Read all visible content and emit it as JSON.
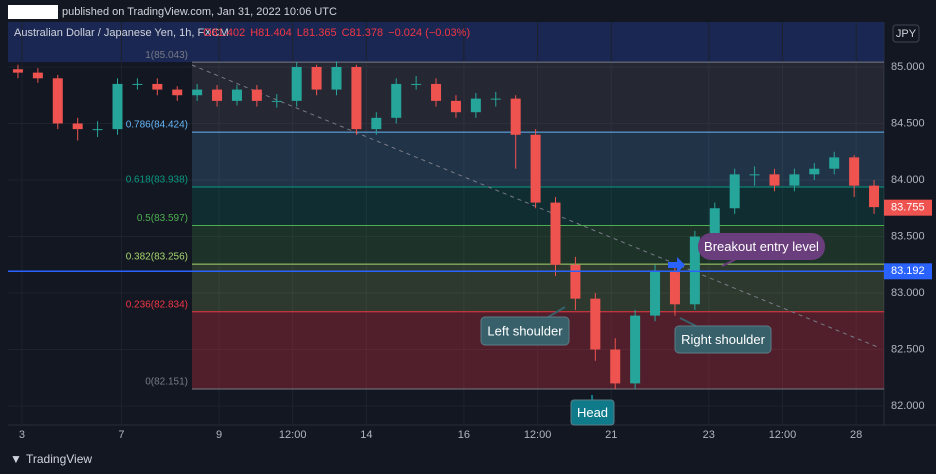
{
  "header": "published on TradingView.com, Jan 31, 2022 10:06 UTC",
  "brand": "TradingView",
  "chart_data": {
    "type": "candlestick",
    "symbol": "Australian Dollar / Japanese Yen, 1h, FXCM",
    "ohlc_legend": [
      "O81.402",
      "H81.404",
      "L81.365",
      "C81.378",
      "−0.024 (−0.03%)"
    ],
    "currency": "JPY",
    "up_color": "#26a69a",
    "down_color": "#ef5350",
    "open": [
      84.98,
      84.95,
      84.9,
      84.5,
      84.45,
      84.45,
      84.85,
      84.85,
      84.8,
      84.75,
      84.8,
      84.7,
      84.8,
      84.7,
      84.7,
      85.0,
      84.8,
      85.0,
      84.45,
      84.55,
      84.85,
      84.85,
      84.7,
      84.6,
      84.72,
      84.72,
      84.4,
      83.8,
      83.25,
      82.95,
      82.5,
      82.2,
      82.8,
      83.2,
      82.9,
      83.5,
      83.75,
      84.05,
      84.05,
      83.95,
      84.05,
      84.1,
      84.2,
      83.95
    ],
    "high": [
      85.02,
      84.99,
      84.93,
      84.55,
      84.52,
      84.9,
      84.9,
      84.9,
      84.83,
      84.85,
      84.84,
      84.84,
      84.84,
      84.76,
      85.04,
      85.02,
      85.05,
      85.02,
      84.6,
      84.9,
      84.92,
      84.9,
      84.75,
      84.77,
      84.78,
      84.75,
      84.45,
      83.85,
      83.32,
      83.0,
      82.6,
      82.85,
      83.25,
      83.25,
      83.55,
      83.8,
      84.1,
      84.12,
      84.1,
      84.1,
      84.15,
      84.25,
      84.22,
      84.0
    ],
    "low": [
      84.9,
      84.86,
      84.45,
      84.35,
      84.38,
      84.4,
      84.8,
      84.75,
      84.7,
      84.7,
      84.65,
      84.66,
      84.65,
      84.64,
      84.65,
      84.75,
      84.75,
      84.4,
      84.4,
      84.5,
      84.8,
      84.65,
      84.55,
      84.55,
      84.65,
      84.1,
      83.75,
      83.15,
      82.85,
      82.4,
      82.15,
      82.15,
      82.75,
      82.8,
      82.85,
      83.45,
      83.7,
      83.95,
      83.9,
      83.9,
      84.0,
      84.05,
      83.85,
      83.7
    ],
    "close": [
      84.95,
      84.9,
      84.5,
      84.45,
      84.45,
      84.85,
      84.85,
      84.8,
      84.75,
      84.8,
      84.7,
      84.8,
      84.7,
      84.7,
      85.0,
      84.8,
      85.0,
      84.45,
      84.55,
      84.85,
      84.85,
      84.7,
      84.6,
      84.72,
      84.72,
      84.4,
      83.8,
      83.25,
      82.95,
      82.5,
      82.2,
      82.8,
      83.2,
      82.9,
      83.5,
      83.75,
      84.05,
      84.05,
      83.95,
      84.05,
      84.1,
      84.2,
      83.95,
      83.76
    ],
    "xlim": [
      -0.5,
      43.5
    ],
    "xticks": [
      {
        "value": 0.2,
        "label": "3"
      },
      {
        "value": 5.2,
        "label": "7"
      },
      {
        "value": 10.1,
        "label": "9"
      },
      {
        "value": 13.8,
        "label": "12:00"
      },
      {
        "value": 17.5,
        "label": "14"
      },
      {
        "value": 22.4,
        "label": "16"
      },
      {
        "value": 26.1,
        "label": "12:00"
      },
      {
        "value": 29.8,
        "label": "21"
      },
      {
        "value": 34.7,
        "label": "23"
      },
      {
        "value": 38.4,
        "label": "12:00"
      },
      {
        "value": 42.1,
        "label": "28"
      }
    ],
    "ylim": [
      81.832,
      85.398
    ],
    "yticks": [
      {
        "value": 82,
        "label": "82.000"
      },
      {
        "value": 82.5,
        "label": "82.500"
      },
      {
        "value": 83,
        "label": "83.000"
      },
      {
        "value": 83.5,
        "label": "83.500"
      },
      {
        "value": 84,
        "label": "84.000"
      },
      {
        "value": 84.5,
        "label": "84.500"
      },
      {
        "value": 85,
        "label": "85.000"
      }
    ],
    "grid": true,
    "fib_levels": [
      {
        "label": "1(85.043)",
        "value": 85.043,
        "color": "#787b86"
      },
      {
        "label": "0.786(84.424)",
        "value": 84.424,
        "color": "#64b5f6"
      },
      {
        "label": "0.618(83.938)",
        "value": 83.938,
        "color": "#089981"
      },
      {
        "label": "0.5(83.597)",
        "value": 83.597,
        "color": "#4caf50"
      },
      {
        "label": "0.382(83.256)",
        "value": 83.256,
        "color": "#a5d66b"
      },
      {
        "label": "0.236(82.834)",
        "value": 82.834,
        "color": "#f23645"
      },
      {
        "label": "0(82.151)",
        "value": 82.151,
        "color": "#787b86"
      }
    ],
    "price_line": 83.192,
    "price_line_color": "#2962ff",
    "last_price": 83.755,
    "annotations": [
      "Left shoulder",
      "Right shoulder",
      "Head",
      "Breakout entry level"
    ]
  }
}
